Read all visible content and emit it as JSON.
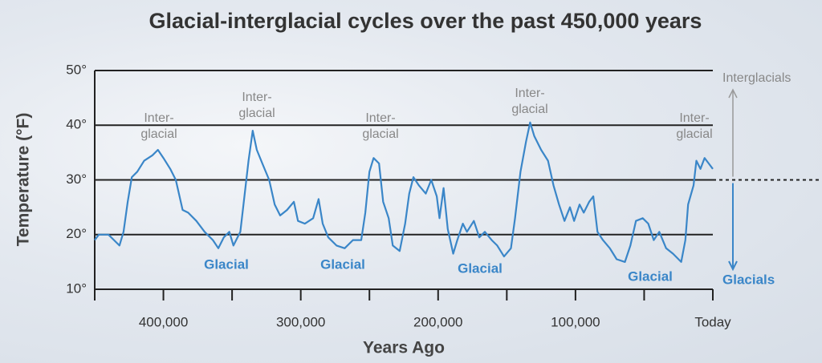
{
  "chart_data": {
    "type": "line",
    "title": "Glacial-interglacial cycles over the past 450,000 years",
    "x_label": "Years Ago",
    "y_label": "Temperature (°F)",
    "xlim": [
      450000,
      0
    ],
    "xticks": [
      {
        "value": 400000,
        "label": "400,000"
      },
      {
        "value": 300000,
        "label": "300,000"
      },
      {
        "value": 200000,
        "label": "200,000"
      },
      {
        "value": 100000,
        "label": "100,000"
      },
      {
        "value": 0,
        "label": "Today"
      }
    ],
    "xminorticks": [
      450000,
      350000,
      250000,
      150000,
      50000
    ],
    "ylim": [
      10,
      50
    ],
    "yticks": [
      {
        "value": 10,
        "label": "10°"
      },
      {
        "value": 20,
        "label": "20°"
      },
      {
        "value": 30,
        "label": "30°"
      },
      {
        "value": 40,
        "label": "40°"
      },
      {
        "value": 50,
        "label": "50°"
      }
    ],
    "grid": true,
    "reference_value": 30,
    "interglacial_labels": [
      [
        "Inter-",
        "glacial"
      ],
      [
        "Inter-",
        "glacial"
      ],
      [
        "Inter-",
        "glacial"
      ],
      [
        "Inter-",
        "glacial"
      ],
      [
        "Inter-",
        "glacial"
      ]
    ],
    "glacial_labels": [
      "Glacial",
      "Glacial",
      "Glacial",
      "Glacial"
    ],
    "side_labels": {
      "up": "Interglacials",
      "down": "Glacials"
    },
    "series": [
      {
        "name": "Temperature",
        "color": "#3a86c8",
        "x": [
          450000,
          447000,
          440000,
          436000,
          432000,
          429000,
          426000,
          423000,
          419000,
          414000,
          408000,
          404000,
          400000,
          395000,
          391000,
          386000,
          382000,
          376000,
          370000,
          364000,
          360000,
          356000,
          352000,
          349000,
          344000,
          341000,
          338000,
          335000,
          332000,
          328000,
          323000,
          319000,
          315000,
          310000,
          305000,
          302000,
          297000,
          291000,
          287000,
          284000,
          280000,
          274000,
          268000,
          262000,
          256000,
          253000,
          250000,
          247000,
          243000,
          240000,
          236000,
          233000,
          228000,
          224000,
          221000,
          218000,
          214000,
          209000,
          205000,
          201000,
          199000,
          196000,
          193000,
          189000,
          186000,
          182000,
          179000,
          174000,
          170000,
          166000,
          161000,
          157000,
          152000,
          147000,
          144000,
          140000,
          136000,
          133000,
          130000,
          125000,
          120000,
          116000,
          112000,
          108000,
          104000,
          101000,
          97000,
          94000,
          90000,
          87000,
          84000,
          80000,
          75000,
          70000,
          64000,
          60000,
          56000,
          51000,
          47000,
          43000,
          39000,
          34000,
          29000,
          23000,
          20000,
          18000,
          14000,
          12000,
          9000,
          6000,
          3000,
          0
        ],
        "values": [
          19,
          20,
          20,
          19,
          18,
          20.5,
          26,
          30.5,
          31.5,
          33.5,
          34.5,
          35.5,
          34,
          32,
          30,
          24.5,
          24,
          22.5,
          20.5,
          19,
          17.5,
          19.5,
          20.5,
          18,
          20.5,
          27,
          33.5,
          39,
          35.5,
          33,
          30,
          25.5,
          23.5,
          24.5,
          26,
          22.5,
          22,
          23,
          26.5,
          22,
          19.5,
          18,
          17.5,
          19,
          19,
          24,
          31.5,
          34,
          33,
          26,
          23,
          18,
          17,
          22,
          27.5,
          30.5,
          29,
          27.5,
          30,
          27,
          23,
          28.5,
          21,
          16.5,
          19,
          22,
          20.5,
          22.5,
          19.5,
          20.5,
          19,
          18,
          16,
          17.5,
          23,
          31.5,
          37,
          40.5,
          38,
          35.5,
          33.5,
          29,
          25.5,
          22.5,
          25,
          22.5,
          25.5,
          24,
          26,
          27,
          20.5,
          19,
          17.5,
          15.5,
          15,
          18,
          22.5,
          23,
          22,
          19,
          20.5,
          17.5,
          16.5,
          15,
          19,
          25.5,
          29,
          33.5,
          32,
          34,
          33,
          32
        ]
      }
    ]
  }
}
